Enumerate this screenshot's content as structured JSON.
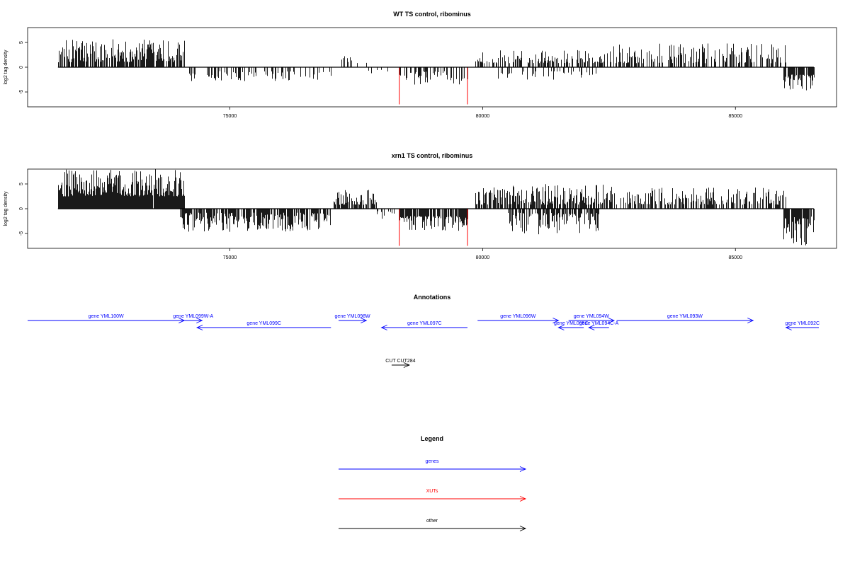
{
  "colors": {
    "gene": "#0000ff",
    "xut": "#ff0000",
    "other": "#000000",
    "signal": "#000000",
    "highlight": "#ff0000"
  },
  "chart_data": [
    {
      "type": "bar",
      "title": "WT TS control, ribominus",
      "ylabel": "log2 tag density",
      "xlim": [
        71000,
        87000
      ],
      "ylim": [
        -8,
        8
      ],
      "xticks": [
        75000,
        80000,
        85000
      ],
      "xtick_labels": [
        "75000",
        "80000",
        "85000"
      ],
      "yticks": [
        -5,
        0,
        5
      ],
      "ytick_labels": [
        "-5",
        "0",
        "5"
      ],
      "baseline": {
        "x": [
          71600,
          86550
        ],
        "y": 0
      },
      "regions": [
        {
          "start": 71600,
          "end": 74100,
          "sign": 1,
          "min": 1.0,
          "max": 5.8,
          "density": 0.75
        },
        {
          "start": 74200,
          "end": 77000,
          "sign": -1,
          "min": 0.8,
          "max": 2.8,
          "density": 0.35
        },
        {
          "start": 77200,
          "end": 77700,
          "sign": 1,
          "min": 0.8,
          "max": 2.6,
          "density": 0.4
        },
        {
          "start": 77700,
          "end": 78300,
          "sign": -1,
          "min": 0.5,
          "max": 2.2,
          "density": 0.15
        },
        {
          "start": 78350,
          "end": 79700,
          "sign": -1,
          "min": 0.8,
          "max": 3.5,
          "density": 0.45
        },
        {
          "start": 79850,
          "end": 82400,
          "sign": 1,
          "min": 0.8,
          "max": 3.5,
          "density": 0.45
        },
        {
          "start": 80300,
          "end": 82300,
          "sign": -1,
          "min": 0.8,
          "max": 2.5,
          "density": 0.25
        },
        {
          "start": 82400,
          "end": 86000,
          "sign": 1,
          "min": 0.8,
          "max": 4.8,
          "density": 0.5
        },
        {
          "start": 85950,
          "end": 86550,
          "sign": -1,
          "min": 1.5,
          "max": 4.8,
          "density": 0.8
        }
      ],
      "highlight_bars": [
        {
          "x": 78350,
          "y": -7.5
        },
        {
          "x": 79700,
          "y": -7.5
        }
      ]
    },
    {
      "type": "bar",
      "title": "xrn1 TS control, ribominus",
      "ylabel": "log2 tag density",
      "xlim": [
        71000,
        87000
      ],
      "ylim": [
        -8,
        8
      ],
      "xticks": [
        75000,
        80000,
        85000
      ],
      "xtick_labels": [
        "75000",
        "80000",
        "85000"
      ],
      "yticks": [
        -5,
        0,
        5
      ],
      "ytick_labels": [
        "-5",
        "0",
        "5"
      ],
      "baseline": {
        "x": [
          71600,
          86550
        ],
        "y": 0
      },
      "regions": [
        {
          "start": 71600,
          "end": 74100,
          "sign": 1,
          "min": 2.5,
          "max": 8.0,
          "density": 0.98
        },
        {
          "start": 74000,
          "end": 77000,
          "sign": -1,
          "min": 0.8,
          "max": 4.8,
          "density": 0.75
        },
        {
          "start": 77050,
          "end": 77900,
          "sign": 1,
          "min": 0.8,
          "max": 4.5,
          "density": 0.8
        },
        {
          "start": 77900,
          "end": 78300,
          "sign": -1,
          "min": 0.5,
          "max": 2.2,
          "density": 0.3
        },
        {
          "start": 78350,
          "end": 79700,
          "sign": -1,
          "min": 1.5,
          "max": 4.5,
          "density": 0.85
        },
        {
          "start": 79850,
          "end": 82400,
          "sign": 1,
          "min": 0.8,
          "max": 5.0,
          "density": 0.75
        },
        {
          "start": 80500,
          "end": 82300,
          "sign": -1,
          "min": 0.8,
          "max": 5.2,
          "density": 0.7
        },
        {
          "start": 82400,
          "end": 86000,
          "sign": 1,
          "min": 0.8,
          "max": 4.5,
          "density": 0.6
        },
        {
          "start": 85950,
          "end": 86550,
          "sign": -1,
          "min": 1.5,
          "max": 7.5,
          "density": 0.9
        }
      ],
      "highlight_bars": [
        {
          "x": 78350,
          "y": -7.5
        },
        {
          "x": 79700,
          "y": -7.5
        }
      ]
    }
  ],
  "annotations": {
    "title": "Annotations",
    "features": [
      {
        "label": "gene YML100W",
        "start": 71000,
        "end": 74100,
        "strand": "+",
        "kind": "gene",
        "row": 0
      },
      {
        "label": "gene YML099W-A",
        "start": 74100,
        "end": 74450,
        "strand": "+",
        "kind": "gene",
        "row": 0
      },
      {
        "label": "gene YML099C",
        "start": 74350,
        "end": 77000,
        "strand": "-",
        "kind": "gene",
        "row": 1
      },
      {
        "label": "gene YML098W",
        "start": 77150,
        "end": 77700,
        "strand": "+",
        "kind": "gene",
        "row": 0
      },
      {
        "label": "gene YML097C",
        "start": 78000,
        "end": 79700,
        "strand": "-",
        "kind": "gene",
        "row": 1
      },
      {
        "label": "gene YML096W",
        "start": 79900,
        "end": 81500,
        "strand": "+",
        "kind": "gene",
        "row": 0
      },
      {
        "label": "gene YML095C",
        "start": 81500,
        "end": 82000,
        "strand": "-",
        "kind": "gene",
        "row": 1
      },
      {
        "label": "gene YML094W",
        "start": 81700,
        "end": 82600,
        "strand": "+",
        "kind": "gene",
        "row": 0
      },
      {
        "label": "gene YML094C-A",
        "start": 82100,
        "end": 82500,
        "strand": "-",
        "kind": "gene",
        "row": 1
      },
      {
        "label": "gene YML093W",
        "start": 82650,
        "end": 85350,
        "strand": "+",
        "kind": "gene",
        "row": 0
      },
      {
        "label": "gene YML092C",
        "start": 86000,
        "end": 86800,
        "strand": "-",
        "kind": "gene",
        "row": 1
      },
      {
        "label": "CUT CUT284",
        "start": 78200,
        "end": 78550,
        "strand": "+",
        "kind": "other",
        "row": 2
      }
    ]
  },
  "legend": {
    "title": "Legend",
    "items": [
      {
        "label": "genes",
        "kind": "gene"
      },
      {
        "label": "XUTs",
        "kind": "xut"
      },
      {
        "label": "other",
        "kind": "other"
      }
    ]
  }
}
